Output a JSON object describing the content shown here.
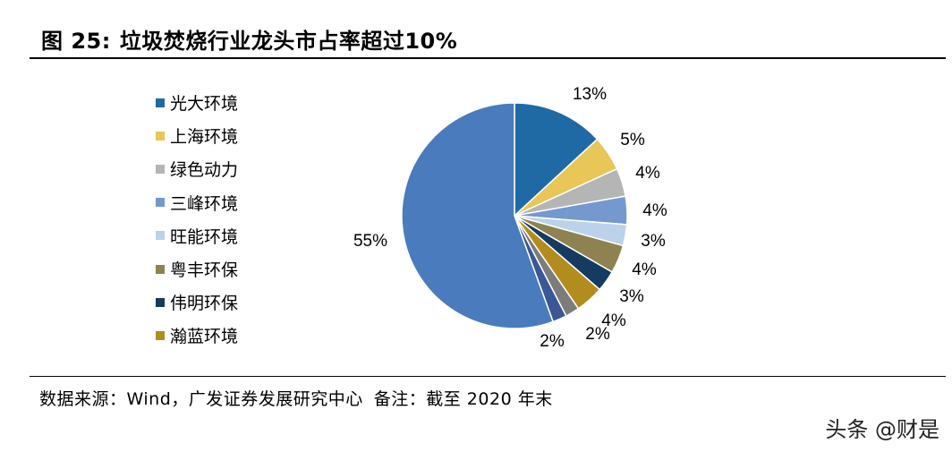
{
  "title": {
    "figure_no": "图 25:",
    "text": "垃圾焚烧行业龙头市占率超过10%"
  },
  "source": {
    "text": "数据来源：Wind，广发证券发展研究中心",
    "note": "备注：截至 2020 年末"
  },
  "watermark": "头条 @财是",
  "chart_data": {
    "type": "pie",
    "title": "",
    "series": [
      {
        "name": "光大环境",
        "value": 13,
        "label": "13%",
        "color": "#1f6aa5"
      },
      {
        "name": "上海环境",
        "value": 5,
        "label": "5%",
        "color": "#e8c657"
      },
      {
        "name": "绿色动力",
        "value": 4,
        "label": "4%",
        "color": "#b5b5b5"
      },
      {
        "name": "三峰环境",
        "value": 4,
        "label": "4%",
        "color": "#7499cf"
      },
      {
        "name": "旺能环境",
        "value": 3,
        "label": "3%",
        "color": "#bcd2ea"
      },
      {
        "name": "粤丰环保",
        "value": 4,
        "label": "4%",
        "color": "#8e8350"
      },
      {
        "name": "伟明环保",
        "value": 3,
        "label": "3%",
        "color": "#153b61"
      },
      {
        "name": "瀚蓝环境",
        "value": 4,
        "label": "4%",
        "color": "#b38c1e"
      },
      {
        "name": "",
        "value": 2,
        "label": "2%",
        "color": "#7c7c7c"
      },
      {
        "name": "",
        "value": 2,
        "label": "2%",
        "color": "#3b5795"
      },
      {
        "name": "",
        "value": 55,
        "label": "55%",
        "color": "#4a7bbd"
      }
    ],
    "legend_position": "left"
  }
}
